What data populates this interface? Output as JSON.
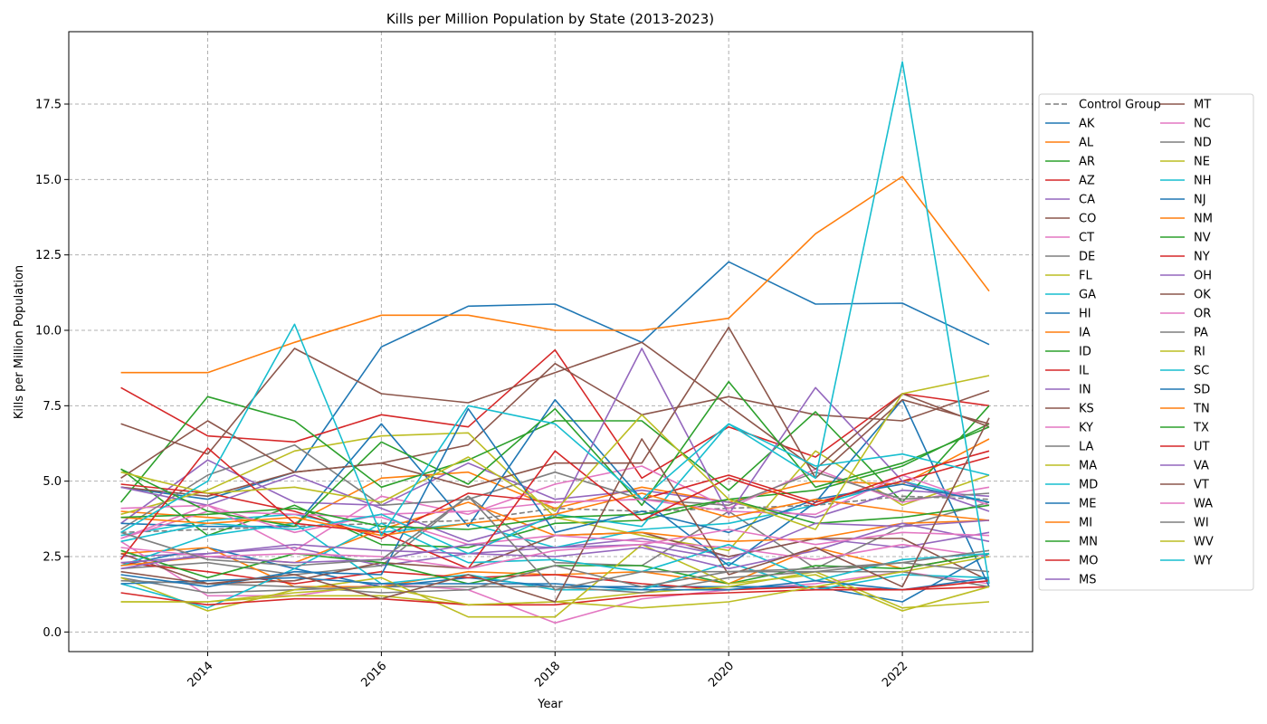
{
  "chart_data": {
    "type": "line",
    "title": "Kills per Million Population by State (2013-2023)",
    "xlabel": "Year",
    "ylabel": "Kills per Million Population",
    "xlim": [
      2012.4,
      2023.5
    ],
    "ylim": [
      -0.65,
      19.9
    ],
    "x_ticks": [
      2014,
      2016,
      2018,
      2020,
      2022
    ],
    "y_ticks": [
      0.0,
      2.5,
      5.0,
      7.5,
      10.0,
      12.5,
      15.0,
      17.5
    ],
    "x_tick_labels": [
      "2014",
      "2016",
      "2018",
      "2020",
      "2022"
    ],
    "y_tick_labels": [
      "0.0",
      "2.5",
      "5.0",
      "7.5",
      "10.0",
      "12.5",
      "15.0",
      "17.5"
    ],
    "grid": true,
    "legend": {
      "position": "center-right",
      "columns": 2
    },
    "x": [
      2013,
      2014,
      2015,
      2016,
      2017,
      2018,
      2019,
      2020,
      2021,
      2022,
      2023
    ],
    "series": [
      {
        "name": "Control Group",
        "color": "#7f7f7f",
        "dashed": true,
        "values": [
          3.3,
          3.4,
          3.5,
          3.6,
          3.7,
          4.1,
          4.0,
          4.1,
          4.2,
          4.5,
          4.4
        ]
      },
      {
        "name": "AK",
        "color": "#1f77b4",
        "values": [
          4.8,
          4.4,
          5.3,
          9.45,
          10.8,
          10.87,
          9.6,
          12.27,
          10.87,
          10.9,
          9.53
        ]
      },
      {
        "name": "AL",
        "color": "#ff7f0e",
        "values": [
          4.0,
          3.8,
          3.6,
          5.1,
          5.3,
          4.1,
          4.8,
          4.3,
          5.0,
          4.9,
          6.4
        ]
      },
      {
        "name": "AR",
        "color": "#2ca02c",
        "values": [
          5.4,
          3.2,
          4.2,
          2.9,
          2.8,
          3.6,
          3.7,
          4.4,
          4.7,
          5.5,
          6.9
        ]
      },
      {
        "name": "AZ",
        "color": "#d62728",
        "values": [
          8.1,
          6.5,
          6.3,
          7.2,
          6.8,
          9.35,
          5.1,
          6.8,
          5.8,
          7.9,
          7.5
        ]
      },
      {
        "name": "CA",
        "color": "#9467bd",
        "values": [
          2.5,
          2.6,
          2.8,
          2.2,
          2.6,
          2.8,
          3.1,
          2.5,
          3.1,
          2.8,
          3.3
        ]
      },
      {
        "name": "CO",
        "color": "#8c564b",
        "values": [
          4.8,
          4.5,
          5.3,
          5.6,
          6.2,
          8.9,
          7.2,
          7.8,
          7.2,
          7.0,
          8.0
        ]
      },
      {
        "name": "CT",
        "color": "#e377c2",
        "values": [
          3.0,
          1.2,
          1.2,
          1.6,
          1.4,
          0.3,
          1.1,
          1.4,
          1.6,
          2.0,
          1.6
        ]
      },
      {
        "name": "DE",
        "color": "#7f7f7f",
        "values": [
          2.1,
          2.3,
          1.9,
          2.2,
          4.5,
          2.3,
          2.2,
          4.0,
          2.1,
          3.5,
          4.3
        ]
      },
      {
        "name": "FL",
        "color": "#bcbd22",
        "values": [
          3.9,
          4.7,
          6.0,
          6.5,
          6.6,
          3.8,
          3.2,
          2.7,
          6.0,
          4.2,
          5.2
        ]
      },
      {
        "name": "GA",
        "color": "#17becf",
        "values": [
          3.2,
          3.7,
          3.9,
          3.3,
          3.6,
          2.8,
          3.4,
          3.6,
          4.2,
          5.0,
          4.3
        ]
      },
      {
        "name": "HI",
        "color": "#1f77b4",
        "values": [
          2.2,
          2.8,
          2.1,
          1.5,
          1.8,
          1.5,
          1.5,
          1.5,
          1.5,
          1.0,
          2.6
        ]
      },
      {
        "name": "IA",
        "color": "#ff7f0e",
        "values": [
          2.6,
          2.8,
          1.5,
          1.5,
          2.0,
          1.9,
          2.0,
          1.6,
          2.8,
          2.1,
          2.6
        ]
      },
      {
        "name": "ID",
        "color": "#2ca02c",
        "values": [
          4.3,
          7.8,
          7.0,
          4.8,
          5.7,
          7.0,
          7.0,
          4.7,
          7.3,
          4.3,
          7.5
        ]
      },
      {
        "name": "IL",
        "color": "#d62728",
        "values": [
          2.3,
          2.0,
          1.6,
          2.0,
          1.8,
          1.9,
          1.6,
          1.4,
          1.5,
          1.4,
          1.5
        ]
      },
      {
        "name": "IN",
        "color": "#9467bd",
        "values": [
          3.6,
          5.7,
          4.3,
          4.2,
          5.6,
          4.4,
          4.7,
          4.3,
          3.8,
          4.7,
          4.5
        ]
      },
      {
        "name": "KS",
        "color": "#8c564b",
        "values": [
          2.6,
          1.6,
          1.7,
          2.3,
          2.1,
          3.2,
          3.3,
          2.5,
          3.1,
          3.1,
          1.7
        ]
      },
      {
        "name": "KY",
        "color": "#e377c2",
        "values": [
          4.1,
          4.2,
          2.7,
          4.5,
          3.9,
          4.9,
          5.5,
          4.1,
          5.4,
          4.3,
          4.8
        ]
      },
      {
        "name": "LA",
        "color": "#7f7f7f",
        "values": [
          3.4,
          5.2,
          6.2,
          4.2,
          4.4,
          5.3,
          4.4,
          4.2,
          5.3,
          4.4,
          4.6
        ]
      },
      {
        "name": "MA",
        "color": "#bcbd22",
        "values": [
          1.0,
          1.0,
          1.2,
          1.2,
          0.9,
          1.0,
          1.3,
          1.5,
          2.0,
          0.8,
          1.0
        ]
      },
      {
        "name": "MD",
        "color": "#17becf",
        "values": [
          2.2,
          3.2,
          3.6,
          1.6,
          1.9,
          1.4,
          1.4,
          2.3,
          1.4,
          1.9,
          1.8
        ]
      },
      {
        "name": "ME",
        "color": "#1f77b4",
        "values": [
          3.6,
          3.5,
          3.5,
          6.9,
          3.5,
          7.7,
          4.4,
          2.2,
          4.3,
          7.7,
          1.5
        ]
      },
      {
        "name": "MI",
        "color": "#ff7f0e",
        "values": [
          2.2,
          2.5,
          2.3,
          3.4,
          4.3,
          3.2,
          3.3,
          3.0,
          3.1,
          3.6,
          3.7
        ]
      },
      {
        "name": "MN",
        "color": "#2ca02c",
        "values": [
          2.7,
          1.8,
          2.6,
          2.3,
          1.6,
          2.2,
          2.2,
          1.6,
          2.2,
          2.1,
          2.6
        ]
      },
      {
        "name": "MO",
        "color": "#d62728",
        "values": [
          4.9,
          4.6,
          4.0,
          3.1,
          4.6,
          4.3,
          4.4,
          5.2,
          4.3,
          5.0,
          5.8
        ]
      },
      {
        "name": "MS",
        "color": "#9467bd",
        "values": [
          4.8,
          4.2,
          5.2,
          4.1,
          3.0,
          3.8,
          9.4,
          3.9,
          8.1,
          5.0,
          4.0
        ]
      },
      {
        "name": "MT",
        "color": "#8c564b",
        "values": [
          6.9,
          5.9,
          9.4,
          7.9,
          7.6,
          8.6,
          9.6,
          7.5,
          5.4,
          7.9,
          6.8
        ]
      },
      {
        "name": "NC",
        "color": "#e377c2",
        "values": [
          3.1,
          4.0,
          3.9,
          3.8,
          2.9,
          3.2,
          3.0,
          2.8,
          2.4,
          2.9,
          2.5
        ]
      },
      {
        "name": "ND",
        "color": "#7f7f7f",
        "values": [
          1.8,
          1.3,
          1.4,
          1.5,
          1.5,
          1.5,
          1.3,
          1.8,
          2.0,
          2.0,
          1.5
        ]
      },
      {
        "name": "NE",
        "color": "#bcbd22",
        "values": [
          1.8,
          0.7,
          1.4,
          1.8,
          0.5,
          0.5,
          2.9,
          1.6,
          1.9,
          0.7,
          1.5
        ]
      },
      {
        "name": "NH",
        "color": "#17becf",
        "values": [
          1.6,
          0.8,
          2.1,
          3.6,
          2.3,
          2.4,
          2.0,
          2.9,
          1.7,
          2.4,
          2.6
        ]
      },
      {
        "name": "NJ",
        "color": "#1f77b4",
        "values": [
          1.6,
          1.7,
          1.8,
          1.6,
          1.6,
          1.6,
          1.4,
          1.4,
          1.7,
          1.4,
          1.8
        ]
      },
      {
        "name": "NM",
        "color": "#ff7f0e",
        "values": [
          8.6,
          8.6,
          9.6,
          10.5,
          10.5,
          10.0,
          10.0,
          10.4,
          13.2,
          15.1,
          11.3
        ]
      },
      {
        "name": "NV",
        "color": "#2ca02c",
        "values": [
          5.4,
          4.0,
          3.5,
          6.3,
          4.9,
          7.4,
          4.2,
          8.3,
          4.8,
          5.6,
          6.8
        ]
      },
      {
        "name": "NY",
        "color": "#d62728",
        "values": [
          1.3,
          0.9,
          1.1,
          1.1,
          0.9,
          0.9,
          1.2,
          1.3,
          1.4,
          1.4,
          1.7
        ]
      },
      {
        "name": "OH",
        "color": "#9467bd",
        "values": [
          2.1,
          2.6,
          2.9,
          2.7,
          2.6,
          2.5,
          2.8,
          2.1,
          2.7,
          3.6,
          3.0
        ]
      },
      {
        "name": "OK",
        "color": "#8c564b",
        "values": [
          5.1,
          7.0,
          5.3,
          5.6,
          4.8,
          5.6,
          5.6,
          10.1,
          5.1,
          7.7,
          6.9
        ]
      },
      {
        "name": "OR",
        "color": "#e377c2",
        "values": [
          3.1,
          4.2,
          3.3,
          3.9,
          4.0,
          4.3,
          4.4,
          4.0,
          3.9,
          5.2,
          4.2
        ]
      },
      {
        "name": "PA",
        "color": "#7f7f7f",
        "values": [
          1.7,
          1.6,
          1.5,
          1.3,
          1.4,
          2.2,
          1.5,
          2.0,
          2.0,
          2.3,
          2.7
        ]
      },
      {
        "name": "RI",
        "color": "#bcbd22",
        "values": [
          1.0,
          1.0,
          1.3,
          1.5,
          0.9,
          1.0,
          0.8,
          1.0,
          1.5,
          2.0,
          2.5
        ]
      },
      {
        "name": "SC",
        "color": "#17becf",
        "values": [
          3.0,
          3.6,
          3.4,
          3.9,
          2.6,
          3.9,
          3.5,
          6.9,
          5.5,
          5.9,
          5.2
        ]
      },
      {
        "name": "SD",
        "color": "#1f77b4",
        "values": [
          1.9,
          1.5,
          2.0,
          1.9,
          7.4,
          3.3,
          4.0,
          3.3,
          4.4,
          4.9,
          4.3
        ]
      },
      {
        "name": "TN",
        "color": "#ff7f0e",
        "values": [
          3.8,
          3.6,
          3.8,
          3.2,
          3.6,
          3.9,
          4.6,
          3.8,
          4.4,
          4.0,
          3.7
        ]
      },
      {
        "name": "TX",
        "color": "#2ca02c",
        "values": [
          3.8,
          3.9,
          4.1,
          3.5,
          3.4,
          3.8,
          3.9,
          4.4,
          3.6,
          3.8,
          4.2
        ]
      },
      {
        "name": "UT",
        "color": "#d62728",
        "values": [
          2.4,
          6.1,
          3.6,
          3.3,
          2.1,
          6.0,
          3.7,
          5.1,
          4.2,
          5.2,
          6.0
        ]
      },
      {
        "name": "VA",
        "color": "#9467bd",
        "values": [
          2.3,
          2.5,
          2.3,
          2.4,
          2.9,
          2.8,
          2.9,
          2.4,
          3.6,
          3.5,
          3.7
        ]
      },
      {
        "name": "VT",
        "color": "#8c564b",
        "values": [
          2.0,
          1.6,
          1.9,
          1.1,
          1.9,
          1.0,
          6.4,
          1.9,
          2.8,
          1.5,
          7.1
        ]
      },
      {
        "name": "WA",
        "color": "#e377c2",
        "values": [
          2.8,
          2.5,
          2.6,
          2.5,
          2.1,
          2.7,
          2.9,
          3.4,
          2.9,
          3.3,
          3.2
        ]
      },
      {
        "name": "WI",
        "color": "#7f7f7f",
        "values": [
          3.3,
          2.4,
          2.2,
          2.4,
          4.5,
          1.4,
          2.0,
          2.0,
          2.1,
          2.3,
          2.0
        ]
      },
      {
        "name": "WV",
        "color": "#bcbd22",
        "values": [
          5.3,
          4.6,
          4.8,
          4.3,
          5.8,
          4.0,
          7.2,
          4.4,
          3.4,
          7.9,
          8.5
        ]
      },
      {
        "name": "WY",
        "color": "#17becf",
        "values": [
          3.3,
          5.0,
          10.2,
          3.2,
          7.5,
          6.9,
          4.4,
          6.9,
          5.1,
          18.9,
          1.6
        ]
      }
    ]
  }
}
